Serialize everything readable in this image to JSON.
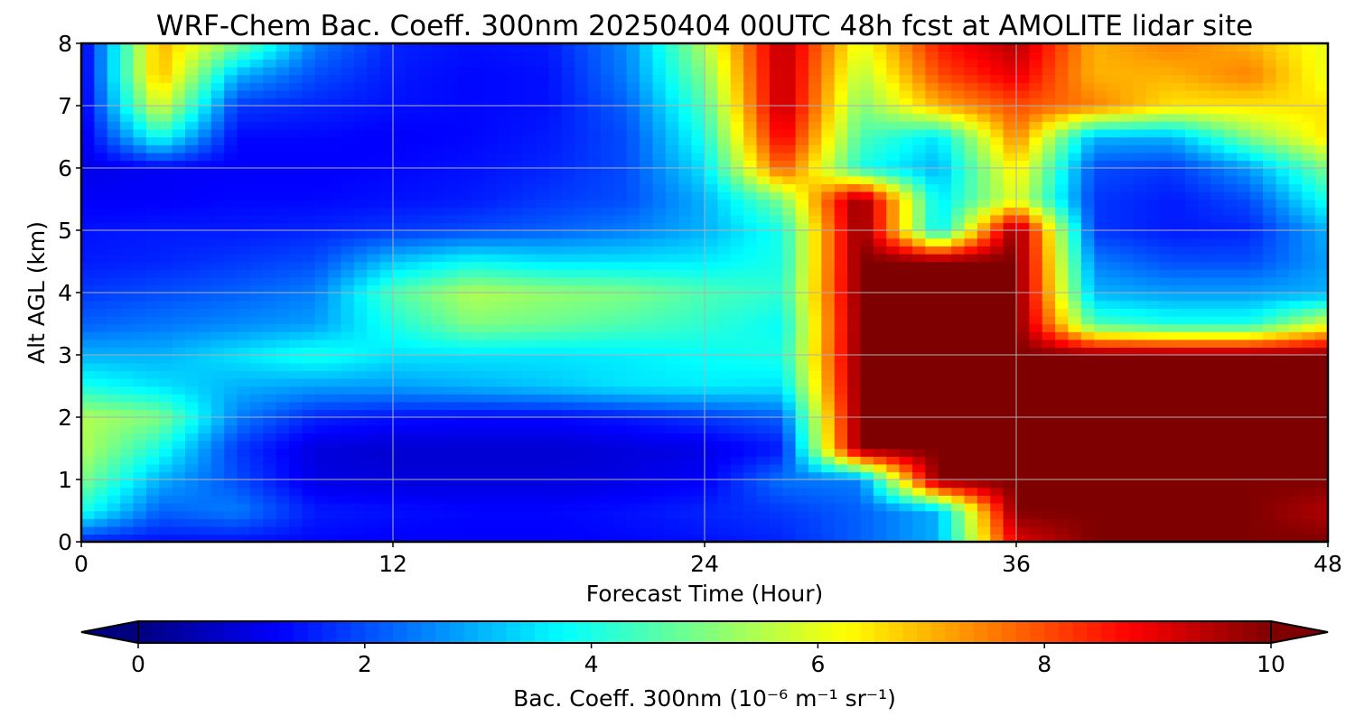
{
  "chart_data": {
    "type": "heatmap",
    "title": "WRF-Chem Bac. Coeff. 300nm  20250404 00UTC 48h fcst at AMOLITE lidar site",
    "xlabel": "Forecast Time (Hour)",
    "ylabel": "Alt AGL (km)",
    "xlim": [
      0,
      48
    ],
    "ylim": [
      0,
      8
    ],
    "xticks": [
      0,
      12,
      24,
      36,
      48
    ],
    "yticks": [
      0,
      1,
      2,
      3,
      4,
      5,
      6,
      7,
      8
    ],
    "grid": true,
    "x": [
      0,
      3,
      6,
      9,
      12,
      15,
      18,
      21,
      24,
      27,
      30,
      33,
      36,
      39,
      42,
      45,
      48
    ],
    "y": [
      0,
      0.5,
      1,
      1.5,
      2,
      2.5,
      3,
      3.5,
      4,
      4.5,
      5,
      5.5,
      6,
      6.5,
      7,
      7.5,
      8
    ],
    "z": [
      [
        1.5,
        1.4,
        1.4,
        1.3,
        1.2,
        1.2,
        1.2,
        1.3,
        1.4,
        1.6,
        2.2,
        3.0,
        9.0,
        10,
        10,
        10,
        10
      ],
      [
        4.0,
        2.2,
        2.5,
        1.5,
        1.4,
        1.3,
        1.3,
        1.4,
        1.6,
        1.8,
        2.2,
        3.0,
        10,
        10,
        10,
        10,
        9.5
      ],
      [
        5.0,
        3.0,
        2.0,
        1.0,
        0.9,
        0.9,
        0.9,
        1.0,
        1.2,
        2.4,
        2.5,
        10,
        10,
        10,
        10,
        10,
        10
      ],
      [
        5.5,
        4.0,
        1.8,
        0.9,
        0.8,
        0.8,
        0.8,
        0.9,
        1.0,
        1.5,
        10,
        10,
        10,
        10,
        10,
        10,
        10
      ],
      [
        5.5,
        5.0,
        2.5,
        1.6,
        1.4,
        1.3,
        1.3,
        1.5,
        1.8,
        2.2,
        10,
        10,
        10,
        10,
        10,
        10,
        10
      ],
      [
        4.0,
        3.5,
        3.0,
        2.8,
        2.8,
        3.0,
        3.2,
        3.5,
        3.6,
        3.5,
        10,
        10,
        10,
        10,
        10,
        10,
        10
      ],
      [
        3.0,
        3.0,
        3.5,
        4.0,
        3.5,
        3.5,
        3.5,
        3.6,
        3.8,
        4.0,
        10,
        10,
        10,
        10,
        10,
        10,
        10
      ],
      [
        2.2,
        2.4,
        2.6,
        2.8,
        4.0,
        5.0,
        4.8,
        4.5,
        4.2,
        3.8,
        10,
        10,
        10,
        4.5,
        4.0,
        4.0,
        6.0
      ],
      [
        1.8,
        2.0,
        2.2,
        2.5,
        4.5,
        5.5,
        5.2,
        5.0,
        4.5,
        4.2,
        10,
        10,
        10,
        3.0,
        2.8,
        2.8,
        3.0
      ],
      [
        1.5,
        1.6,
        1.8,
        2.0,
        3.2,
        3.8,
        3.5,
        3.5,
        3.6,
        4.0,
        10,
        10,
        10,
        2.5,
        2.0,
        2.0,
        2.8
      ],
      [
        1.4,
        1.5,
        1.5,
        1.6,
        1.8,
        2.0,
        2.2,
        2.5,
        3.0,
        4.0,
        10,
        3.5,
        10,
        1.8,
        1.5,
        1.6,
        3.0
      ],
      [
        1.2,
        1.2,
        1.3,
        1.3,
        1.4,
        1.5,
        1.8,
        2.0,
        3.0,
        5.0,
        10,
        3.5,
        6.0,
        1.8,
        1.5,
        2.0,
        4.0
      ],
      [
        1.0,
        1.2,
        1.2,
        1.2,
        1.3,
        1.4,
        1.6,
        2.0,
        3.5,
        8.0,
        4.0,
        3.0,
        6.5,
        2.0,
        1.8,
        2.8,
        5.0
      ],
      [
        1.0,
        4.0,
        1.3,
        1.3,
        1.2,
        1.3,
        1.5,
        2.0,
        4.0,
        9.0,
        4.5,
        3.5,
        7.5,
        3.0,
        3.0,
        5.0,
        6.5
      ],
      [
        1.0,
        6.0,
        1.8,
        1.6,
        1.4,
        1.3,
        1.4,
        2.2,
        4.5,
        9.5,
        5.0,
        7.0,
        8.0,
        7.5,
        6.5,
        6.5,
        6.5
      ],
      [
        1.0,
        7.0,
        3.0,
        2.0,
        1.5,
        1.3,
        1.4,
        2.5,
        5.0,
        9.5,
        5.5,
        8.0,
        9.0,
        7.0,
        7.0,
        7.5,
        6.0
      ],
      [
        1.0,
        7.0,
        5.0,
        2.5,
        1.6,
        1.4,
        1.5,
        2.6,
        5.5,
        9.5,
        6.0,
        8.5,
        9.5,
        7.0,
        7.5,
        7.0,
        6.0
      ]
    ],
    "colorbar": {
      "label": "Bac. Coeff. 300nm  (10⁻⁶ m⁻¹ sr⁻¹)",
      "ticks": [
        0,
        2,
        4,
        6,
        8,
        10
      ],
      "range": [
        0,
        10
      ],
      "extend": "both",
      "colormap": "jet",
      "colors": [
        "#00007f",
        "#0000ff",
        "#007fff",
        "#00ffff",
        "#7fff7f",
        "#ffff00",
        "#ff7f00",
        "#ff0000",
        "#7f0000"
      ]
    }
  }
}
